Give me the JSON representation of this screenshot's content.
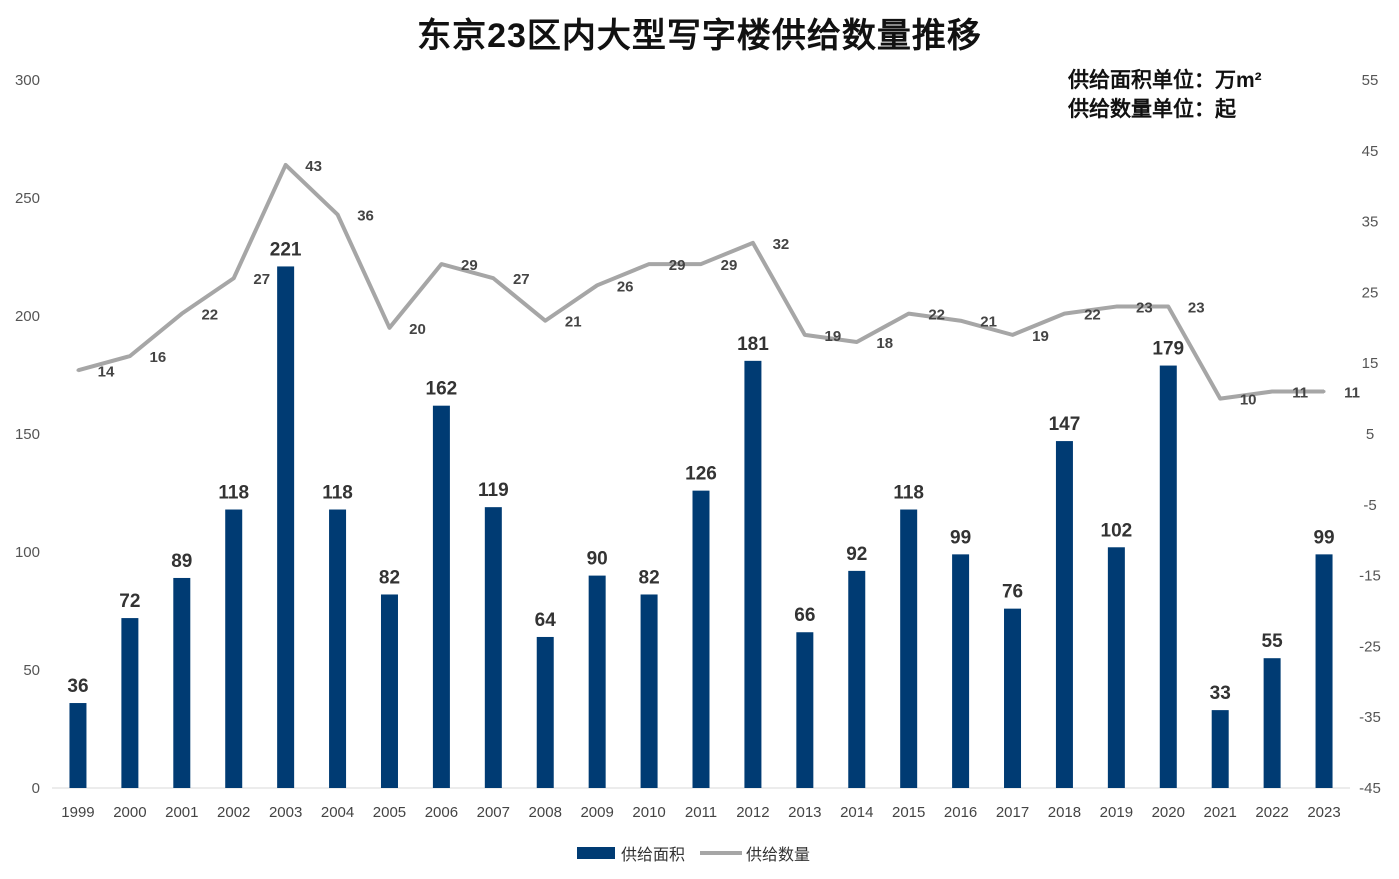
{
  "chart_data": {
    "type": "bar",
    "title": "东京23区内大型写字楼供给数量推移",
    "notes": [
      "供给面积单位：万m²",
      "供给数量单位：起"
    ],
    "categories": [
      "1999",
      "2000",
      "2001",
      "2002",
      "2003",
      "2004",
      "2005",
      "2006",
      "2007",
      "2008",
      "2009",
      "2010",
      "2011",
      "2012",
      "2013",
      "2014",
      "2015",
      "2016",
      "2017",
      "2018",
      "2019",
      "2020",
      "2021",
      "2022",
      "2023"
    ],
    "series": [
      {
        "name": "供给面积",
        "type": "bar",
        "axis": "left",
        "values": [
          36,
          72,
          89,
          118,
          221,
          118,
          82,
          162,
          119,
          64,
          90,
          82,
          126,
          181,
          66,
          92,
          118,
          99,
          76,
          147,
          102,
          179,
          33,
          55,
          99
        ]
      },
      {
        "name": "供给数量",
        "type": "line",
        "axis": "right",
        "values": [
          14,
          16,
          22,
          27,
          43,
          36,
          20,
          29,
          27,
          21,
          26,
          29,
          29,
          32,
          19,
          18,
          22,
          21,
          19,
          22,
          23,
          23,
          10,
          11,
          11
        ]
      }
    ],
    "y_left": {
      "min": 0,
      "max": 300,
      "ticks": [
        0,
        50,
        100,
        150,
        200,
        250,
        300
      ]
    },
    "y_right": {
      "min": -45,
      "max": 55,
      "ticks": [
        -45,
        -35,
        -25,
        -15,
        -5,
        5,
        15,
        25,
        35,
        45,
        55
      ]
    },
    "legend_position": "bottom",
    "colors": {
      "bar": "#003b73",
      "line": "#a6a6a6"
    }
  }
}
